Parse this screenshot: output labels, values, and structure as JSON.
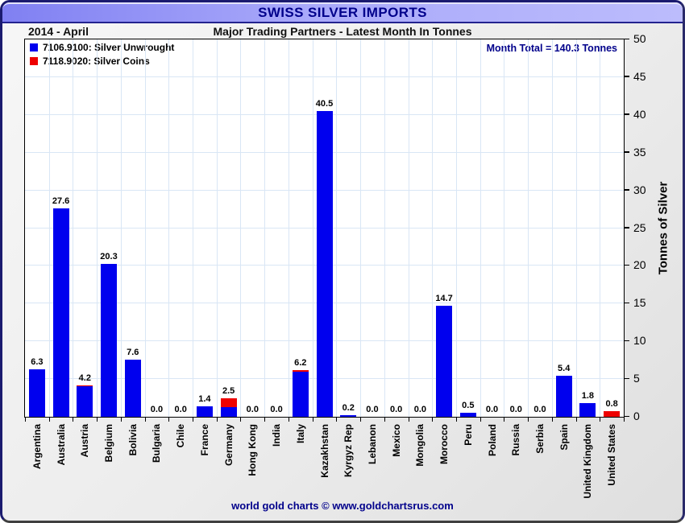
{
  "header": {
    "title": "SWISS SILVER IMPORTS",
    "period": "2014 - April",
    "subtitle": "Major Trading Partners - Latest Month In Tonnes"
  },
  "annotations": {
    "month_total": "Month Total = 140.3 Tonnes"
  },
  "legend": {
    "items": [
      {
        "label": "7106.9100: Silver Unwrought",
        "color": "#0000ee"
      },
      {
        "label": "7118.9020: Silver Coins",
        "color": "#ee0000"
      }
    ]
  },
  "y_axis": {
    "label": "Tonnes of Silver",
    "ticks": [
      0,
      5,
      10,
      15,
      20,
      25,
      30,
      35,
      40,
      45,
      50
    ]
  },
  "footer": {
    "credit": "world gold charts © www.goldchartsrus.com"
  },
  "colors": {
    "unwrought_blue": "#0000ee",
    "coins_red": "#ee0000",
    "navy_text": "#00008b",
    "gridline": "#d9e6f5",
    "header_gradient_start": "#8080f2",
    "header_gradient_end": "#bcbcfc"
  },
  "chart_data": {
    "type": "bar",
    "stacked": true,
    "title": "SWISS SILVER IMPORTS",
    "subtitle": "Major Trading Partners - Latest Month In Tonnes",
    "period": "2014 - April",
    "xlabel": "",
    "ylabel": "Tonnes of Silver",
    "ylim": [
      0,
      50
    ],
    "grid": true,
    "legend_position": "top-left",
    "categories": [
      "Argentina",
      "Australia",
      "Austria",
      "Belgium",
      "Bolivia",
      "Bulgaria",
      "Chile",
      "France",
      "Germany",
      "Hong Kong",
      "India",
      "Italy",
      "Kazakhstan",
      "Kyrgyz Rep",
      "Lebanon",
      "Mexico",
      "Mongolia",
      "Morocco",
      "Peru",
      "Poland",
      "Russia",
      "Serbia",
      "Spain",
      "United Kingdom",
      "United States"
    ],
    "series": [
      {
        "name": "7106.9100: Silver Unwrought",
        "color": "#0000ee",
        "values": [
          6.3,
          27.6,
          4.0,
          20.3,
          7.6,
          0,
          0,
          1.4,
          1.3,
          0,
          0,
          6.0,
          40.5,
          0.2,
          0,
          0,
          0,
          14.7,
          0.5,
          0,
          0,
          0,
          5.4,
          1.8,
          0
        ]
      },
      {
        "name": "7118.9020: Silver Coins",
        "color": "#ee0000",
        "values": [
          0,
          0,
          0.2,
          0,
          0,
          0,
          0,
          0,
          1.2,
          0,
          0,
          0.2,
          0,
          0,
          0,
          0,
          0,
          0,
          0,
          0,
          0,
          0,
          0,
          0,
          0.8
        ]
      }
    ],
    "total_labels": [
      "6.3",
      "27.6",
      "4.2",
      "20.3",
      "7.6",
      "0.0",
      "0.0",
      "1.4",
      "2.5",
      "0.0",
      "0.0",
      "6.2",
      "40.5",
      "0.2",
      "0.0",
      "0.0",
      "0.0",
      "14.7",
      "0.5",
      "0.0",
      "0.0",
      "0.0",
      "5.4",
      "1.8",
      "0.8"
    ],
    "month_total_tonnes": 140.3
  }
}
